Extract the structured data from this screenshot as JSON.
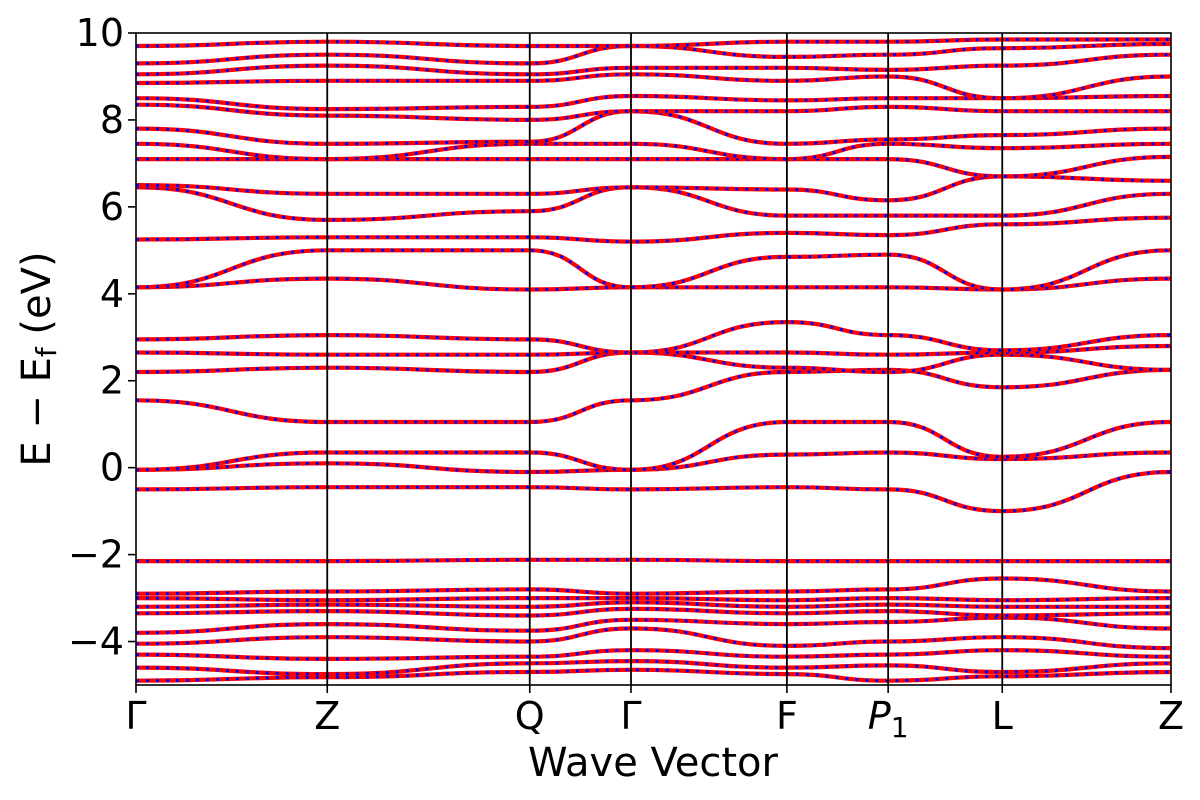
{
  "chart_data": {
    "type": "line",
    "xlabel": "Wave Vector",
    "ylabel_main": "E − E",
    "ylabel_sub": "f",
    "ylabel_unit": " (eV)",
    "ylim": [
      -5,
      10
    ],
    "xlim": [
      0,
      3.22
    ],
    "yticks": [
      -4,
      -2,
      0,
      2,
      4,
      6,
      8,
      10
    ],
    "ytick_labels": [
      "−4",
      "−2",
      "0",
      "2",
      "4",
      "6",
      "8",
      "10"
    ],
    "kpoints": [
      {
        "label": "Γ",
        "sub": "",
        "x": 0.0
      },
      {
        "label": "Z",
        "sub": "",
        "x": 0.595
      },
      {
        "label": "Q",
        "sub": "",
        "x": 1.225
      },
      {
        "label": "Γ",
        "sub": "",
        "x": 1.54
      },
      {
        "label": "F",
        "sub": "",
        "x": 2.025
      },
      {
        "label": "P",
        "sub": "1",
        "x": 2.34
      },
      {
        "label": "L",
        "sub": "",
        "x": 2.695
      },
      {
        "label": "Z",
        "sub": "",
        "x": 3.22
      }
    ],
    "grid": false,
    "legend": "none",
    "series_styles": [
      {
        "color": "#ff0000",
        "style": "solid"
      },
      {
        "color": "#0000ff",
        "style": "dotted"
      }
    ],
    "bands": [
      [
        -4.9,
        -4.82,
        -4.7,
        -4.65,
        -4.75,
        -4.9,
        -4.8,
        -4.7
      ],
      [
        -4.6,
        -4.75,
        -4.5,
        -4.45,
        -4.6,
        -4.55,
        -4.7,
        -4.5
      ],
      [
        -4.3,
        -4.4,
        -4.35,
        -4.2,
        -4.35,
        -4.3,
        -4.2,
        -4.35
      ],
      [
        -4.05,
        -3.9,
        -4.0,
        -3.7,
        -4.1,
        -4.0,
        -3.9,
        -4.15
      ],
      [
        -3.8,
        -3.6,
        -3.75,
        -3.5,
        -3.6,
        -3.55,
        -3.45,
        -3.7
      ],
      [
        -3.35,
        -3.3,
        -3.4,
        -3.25,
        -3.35,
        -3.3,
        -3.4,
        -3.35
      ],
      [
        -3.2,
        -3.15,
        -3.2,
        -3.1,
        -3.2,
        -3.15,
        -3.2,
        -3.2
      ],
      [
        -3.0,
        -3.05,
        -3.0,
        -3.0,
        -3.05,
        -3.0,
        -3.05,
        -3.0
      ],
      [
        -2.9,
        -2.85,
        -2.8,
        -2.9,
        -2.85,
        -2.8,
        -2.55,
        -2.85
      ],
      [
        -2.15,
        -2.15,
        -2.12,
        -2.12,
        -2.15,
        -2.15,
        -2.15,
        -2.15
      ],
      [
        -0.5,
        -0.45,
        -0.45,
        -0.5,
        -0.45,
        -0.5,
        -1.0,
        -0.1
      ],
      [
        -0.05,
        0.1,
        -0.1,
        -0.05,
        0.3,
        0.35,
        0.2,
        0.35
      ],
      [
        -0.05,
        0.35,
        0.35,
        -0.05,
        1.05,
        1.05,
        0.25,
        1.05
      ],
      [
        1.55,
        1.05,
        1.05,
        1.55,
        2.2,
        2.25,
        1.85,
        2.25
      ],
      [
        2.2,
        2.3,
        2.2,
        2.65,
        2.3,
        2.2,
        2.6,
        2.25
      ],
      [
        2.65,
        2.6,
        2.6,
        2.65,
        2.65,
        2.6,
        2.65,
        2.8
      ],
      [
        2.95,
        3.05,
        2.95,
        2.65,
        3.35,
        3.05,
        2.7,
        3.05
      ],
      [
        4.15,
        4.35,
        4.1,
        4.15,
        4.15,
        4.15,
        4.1,
        4.35
      ],
      [
        4.15,
        5.0,
        5.0,
        4.15,
        4.85,
        4.9,
        4.1,
        5.0
      ],
      [
        5.25,
        5.3,
        5.3,
        5.2,
        5.4,
        5.35,
        5.6,
        5.75
      ],
      [
        6.45,
        5.7,
        5.9,
        6.45,
        5.8,
        5.8,
        5.8,
        6.3
      ],
      [
        6.5,
        6.3,
        6.3,
        6.45,
        6.4,
        6.15,
        6.7,
        6.6
      ],
      [
        7.1,
        7.1,
        7.1,
        7.1,
        7.1,
        7.1,
        6.7,
        7.15
      ],
      [
        7.45,
        7.1,
        7.45,
        7.45,
        7.1,
        7.45,
        7.35,
        7.45
      ],
      [
        7.8,
        7.45,
        7.5,
        8.2,
        7.45,
        7.55,
        7.65,
        7.8
      ],
      [
        8.35,
        8.1,
        8.0,
        8.2,
        8.2,
        8.3,
        8.2,
        8.2
      ],
      [
        8.5,
        8.25,
        8.3,
        8.55,
        8.45,
        8.5,
        8.5,
        8.55
      ],
      [
        8.85,
        8.9,
        8.9,
        9.05,
        8.9,
        9.0,
        8.5,
        9.0
      ],
      [
        9.05,
        9.25,
        9.05,
        9.2,
        9.2,
        9.15,
        9.25,
        9.5
      ],
      [
        9.3,
        9.5,
        9.3,
        9.7,
        9.45,
        9.5,
        9.65,
        9.75
      ],
      [
        9.7,
        9.8,
        9.7,
        9.7,
        9.8,
        9.8,
        9.85,
        9.85
      ]
    ]
  }
}
